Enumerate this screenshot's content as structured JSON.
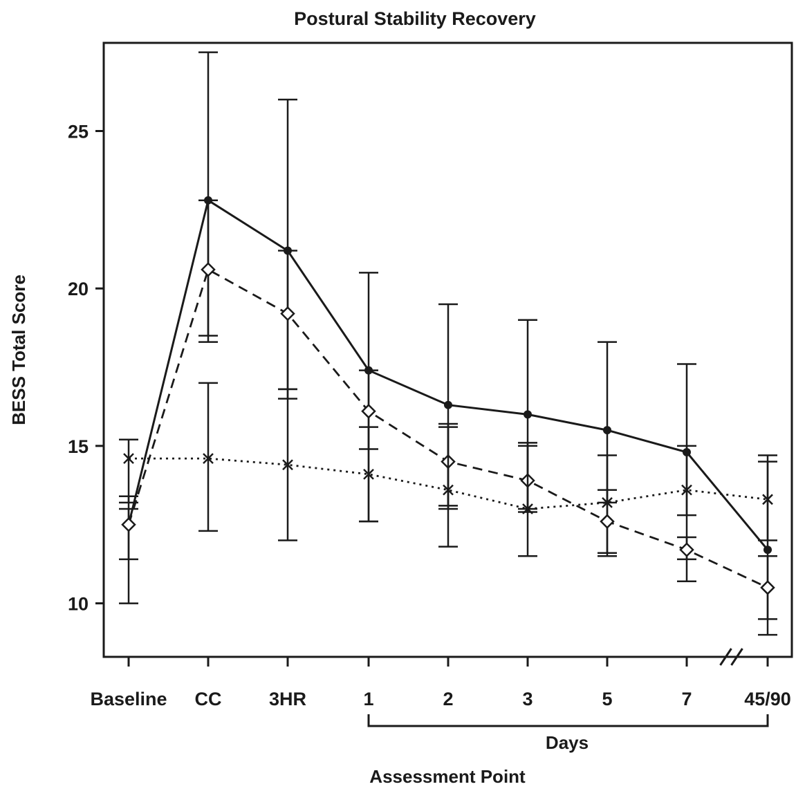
{
  "chart_data": {
    "type": "line",
    "title": "Postural Stability Recovery",
    "xlabel": "Assessment Point",
    "ylabel": "BESS Total Score",
    "categories": [
      "Baseline",
      "CC",
      "3HR",
      "1",
      "2",
      "3",
      "5",
      "7",
      "45/90"
    ],
    "bracket_label": "Days",
    "bracket_span": [
      "1",
      "45/90"
    ],
    "axis_break_between": [
      "7",
      "45/90"
    ],
    "ylim": [
      8.3,
      27.8
    ],
    "yticks": [
      10,
      15,
      20,
      25
    ],
    "grid": false,
    "legend": "none",
    "series": [
      {
        "style": "solid",
        "marker": "filled-circle",
        "color": "#1a1a1a",
        "values": [
          12.5,
          22.8,
          21.2,
          17.4,
          16.3,
          16.0,
          15.5,
          14.8,
          11.7
        ],
        "err_low": [
          10.0,
          18.3,
          16.5,
          12.6,
          11.8,
          11.5,
          11.5,
          10.7,
          9.0
        ],
        "err_high": [
          13.0,
          27.5,
          26.0,
          20.5,
          19.5,
          19.0,
          18.3,
          17.6,
          14.7
        ]
      },
      {
        "style": "dashed",
        "marker": "open-diamond",
        "color": "#1a1a1a",
        "values": [
          12.5,
          20.6,
          19.2,
          16.1,
          14.5,
          13.9,
          12.6,
          11.7,
          10.5
        ],
        "err_low": [
          11.4,
          18.5,
          16.8,
          14.9,
          13.1,
          12.9,
          11.6,
          11.4,
          9.5
        ],
        "err_high": [
          13.4,
          22.8,
          21.2,
          17.4,
          15.6,
          15.0,
          13.6,
          12.1,
          11.5
        ]
      },
      {
        "style": "dotted",
        "marker": "x",
        "color": "#1a1a1a",
        "values": [
          14.6,
          14.6,
          14.4,
          14.1,
          13.6,
          13.0,
          13.2,
          13.6,
          13.3
        ],
        "err_low": [
          13.2,
          12.3,
          12.0,
          12.6,
          13.0,
          13.0,
          13.2,
          12.8,
          12.0
        ],
        "err_high": [
          15.2,
          17.0,
          16.8,
          15.6,
          15.7,
          15.1,
          14.7,
          15.0,
          14.5
        ]
      }
    ]
  }
}
